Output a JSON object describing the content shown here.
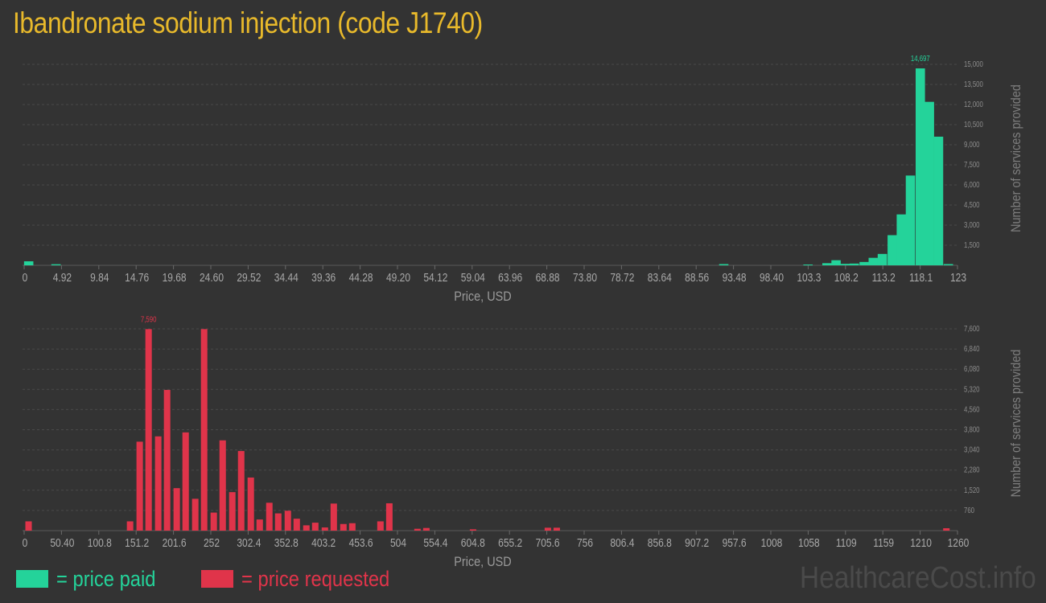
{
  "title": "Ibandronate sodium injection (code J1740)",
  "colors": {
    "paid": "#24d39a",
    "requested": "#e0344a",
    "title": "#e8b92b"
  },
  "legend": {
    "paid": "= price paid",
    "requested": "= price requested"
  },
  "watermark": "HealthcareCost.info",
  "chart_data": [
    {
      "type": "bar",
      "series": [
        {
          "name": "price paid"
        }
      ],
      "xlabel": "Price, USD",
      "ylabel": "Number of services provided",
      "xlim": [
        0,
        123
      ],
      "ylim": [
        0,
        15000
      ],
      "x_ticks": [
        "0",
        "4.92",
        "9.84",
        "14.76",
        "19.68",
        "24.60",
        "29.52",
        "34.44",
        "39.36",
        "44.28",
        "49.20",
        "54.12",
        "59.04",
        "63.96",
        "68.88",
        "73.80",
        "78.72",
        "83.64",
        "88.56",
        "93.48",
        "98.40",
        "103.3",
        "108.2",
        "113.2",
        "118.1",
        "123"
      ],
      "y_ticks": [
        "1,500",
        "3,000",
        "4,500",
        "6,000",
        "7,500",
        "9,000",
        "10,500",
        "12,000",
        "13,500",
        "15,000"
      ],
      "peak_label": "14,697",
      "grid": true,
      "bar_width": 1.23,
      "bars": [
        {
          "x": 0.6,
          "y": 300
        },
        {
          "x": 4.2,
          "y": 80
        },
        {
          "x": 92.2,
          "y": 90
        },
        {
          "x": 103.3,
          "y": 60
        },
        {
          "x": 105.8,
          "y": 160
        },
        {
          "x": 107.0,
          "y": 380
        },
        {
          "x": 108.2,
          "y": 110
        },
        {
          "x": 109.4,
          "y": 130
        },
        {
          "x": 110.7,
          "y": 250
        },
        {
          "x": 111.9,
          "y": 560
        },
        {
          "x": 113.1,
          "y": 850
        },
        {
          "x": 114.4,
          "y": 2250
        },
        {
          "x": 115.6,
          "y": 3800
        },
        {
          "x": 116.8,
          "y": 6700
        },
        {
          "x": 118.1,
          "y": 14697
        },
        {
          "x": 119.3,
          "y": 12200
        },
        {
          "x": 120.5,
          "y": 9600
        },
        {
          "x": 121.8,
          "y": 90
        }
      ]
    },
    {
      "type": "bar",
      "series": [
        {
          "name": "price requested"
        }
      ],
      "xlabel": "Price, USD",
      "ylabel": "Number of services provided",
      "xlim": [
        0,
        1260
      ],
      "ylim": [
        0,
        7600
      ],
      "x_ticks": [
        "0",
        "50.40",
        "100.8",
        "151.2",
        "201.6",
        "252",
        "302.4",
        "352.8",
        "403.2",
        "453.6",
        "504",
        "554.4",
        "604.8",
        "655.2",
        "705.6",
        "756",
        "806.4",
        "856.8",
        "907.2",
        "957.6",
        "1008",
        "1058",
        "1109",
        "1159",
        "1210",
        "1260"
      ],
      "y_ticks": [
        "760",
        "1,520",
        "2,280",
        "3,040",
        "3,800",
        "4,560",
        "5,320",
        "6,080",
        "6,840",
        "7,600"
      ],
      "peak_label": "7,590",
      "grid": true,
      "bar_width": 8.7,
      "bars": [
        {
          "x": 6,
          "y": 350
        },
        {
          "x": 143,
          "y": 350
        },
        {
          "x": 156,
          "y": 3350
        },
        {
          "x": 168,
          "y": 7590
        },
        {
          "x": 181,
          "y": 3550
        },
        {
          "x": 193,
          "y": 5300
        },
        {
          "x": 206,
          "y": 1600
        },
        {
          "x": 218,
          "y": 3700
        },
        {
          "x": 231,
          "y": 1200
        },
        {
          "x": 243,
          "y": 7590
        },
        {
          "x": 256,
          "y": 680
        },
        {
          "x": 268,
          "y": 3400
        },
        {
          "x": 281,
          "y": 1450
        },
        {
          "x": 293,
          "y": 3000
        },
        {
          "x": 306,
          "y": 2000
        },
        {
          "x": 318,
          "y": 420
        },
        {
          "x": 331,
          "y": 1050
        },
        {
          "x": 343,
          "y": 650
        },
        {
          "x": 356,
          "y": 750
        },
        {
          "x": 368,
          "y": 450
        },
        {
          "x": 381,
          "y": 200
        },
        {
          "x": 393,
          "y": 300
        },
        {
          "x": 406,
          "y": 120
        },
        {
          "x": 418,
          "y": 1020
        },
        {
          "x": 431,
          "y": 250
        },
        {
          "x": 443,
          "y": 280
        },
        {
          "x": 481,
          "y": 350
        },
        {
          "x": 493,
          "y": 1030
        },
        {
          "x": 531,
          "y": 70
        },
        {
          "x": 543,
          "y": 100
        },
        {
          "x": 606,
          "y": 50
        },
        {
          "x": 707,
          "y": 110
        },
        {
          "x": 719,
          "y": 110
        },
        {
          "x": 1245,
          "y": 90
        }
      ]
    }
  ]
}
